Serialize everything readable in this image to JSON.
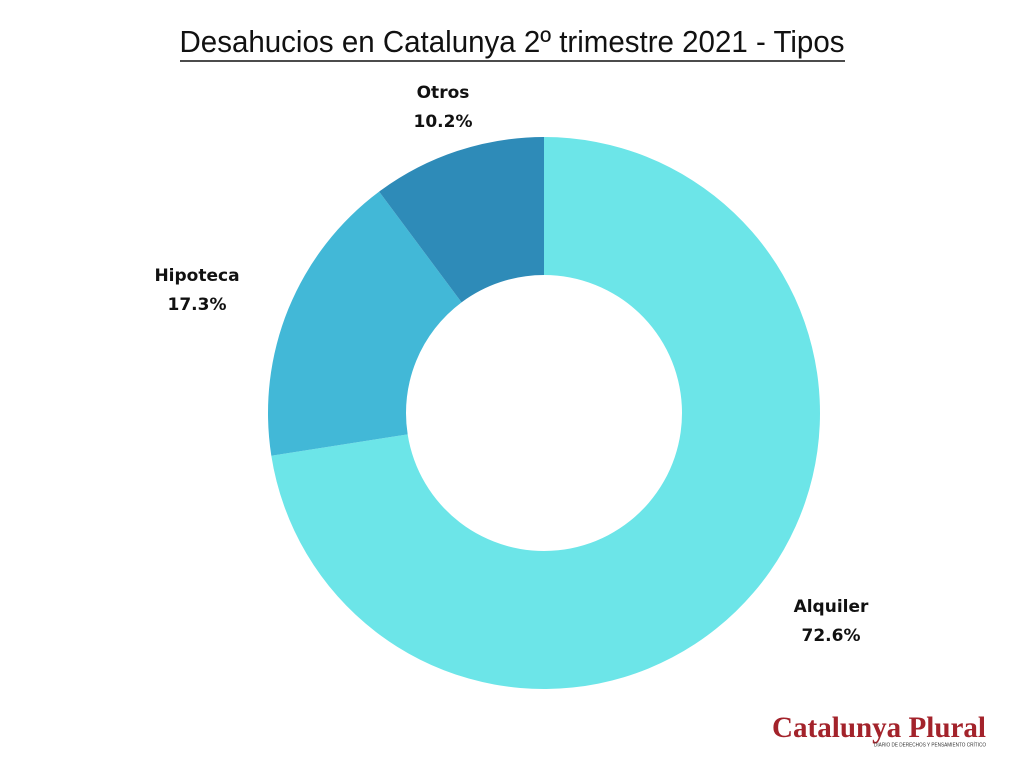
{
  "chart_data": {
    "type": "donut",
    "title": "Desahucios en Catalunya 2º trimestre 2021 - Tipos",
    "categories": [
      "Alquiler",
      "Hipoteca",
      "Otros"
    ],
    "values": [
      72.6,
      17.3,
      10.2
    ],
    "value_labels": [
      "72.6%",
      "17.3%",
      "10.2%"
    ],
    "colors": [
      "#6ce5e8",
      "#42b8d7",
      "#2e8bb8"
    ],
    "logo": "Catalunya Plural",
    "logo_tagline": "DIARIO DE DERECHOS Y PENSAMIENTO CRÍTICO"
  }
}
